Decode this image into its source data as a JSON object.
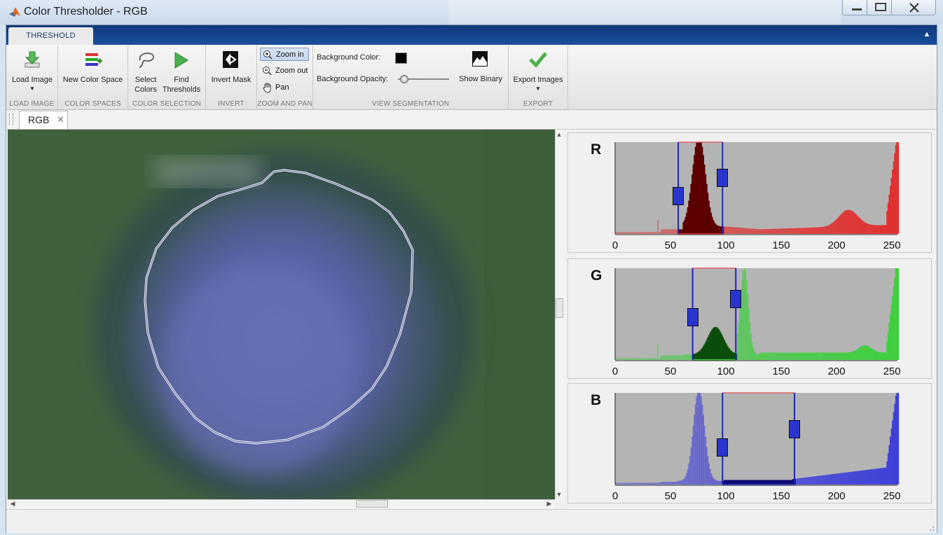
{
  "window": {
    "title": "Color Thresholder - RGB"
  },
  "ribbon": {
    "tab": "THRESHOLD",
    "sections": {
      "load_image": {
        "label": "LOAD IMAGE",
        "load_image_label": "Load Image"
      },
      "color_spaces": {
        "label": "COLOR SPACES",
        "new_color_space_label": "New Color Space"
      },
      "color_selection": {
        "label": "COLOR SELECTION",
        "select_colors_label": [
          "Select",
          "Colors"
        ],
        "find_thresholds_label": [
          "Find",
          "Thresholds"
        ]
      },
      "invert": {
        "label": "INVERT",
        "invert_mask_label": "Invert Mask"
      },
      "zoom_pan": {
        "label": "ZOOM AND PAN",
        "zoom_in_label": "Zoom in",
        "zoom_out_label": "Zoom out",
        "pan_label": "Pan"
      },
      "view_segmentation": {
        "label": "VIEW SEGMENTATION",
        "background_color_label": "Background Color:",
        "background_color_value": "#000000",
        "background_opacity_label": "Background Opacity:",
        "background_opacity_value": 0.12,
        "show_binary_label": "Show Binary"
      },
      "export": {
        "label": "EXPORT",
        "export_images_label": "Export Images"
      }
    }
  },
  "document": {
    "tab_label": "RGB"
  },
  "histograms": [
    {
      "channel": "R",
      "letter": "R",
      "color": "#e03030",
      "dark": "#5c0000",
      "range": [
        57,
        97
      ],
      "ticks": [
        "0",
        "50",
        "100",
        "150",
        "200",
        "250"
      ]
    },
    {
      "channel": "G",
      "letter": "G",
      "color": "#3fcf3f",
      "dark": "#0b4d0b",
      "range": [
        70,
        109
      ],
      "ticks": [
        "0",
        "50",
        "100",
        "150",
        "200",
        "250"
      ]
    },
    {
      "channel": "B",
      "letter": "B",
      "color": "#4040d8",
      "dark": "#0a0a70",
      "range": [
        97,
        162
      ],
      "ticks": [
        "0",
        "50",
        "100",
        "150",
        "200",
        "250"
      ]
    }
  ]
}
